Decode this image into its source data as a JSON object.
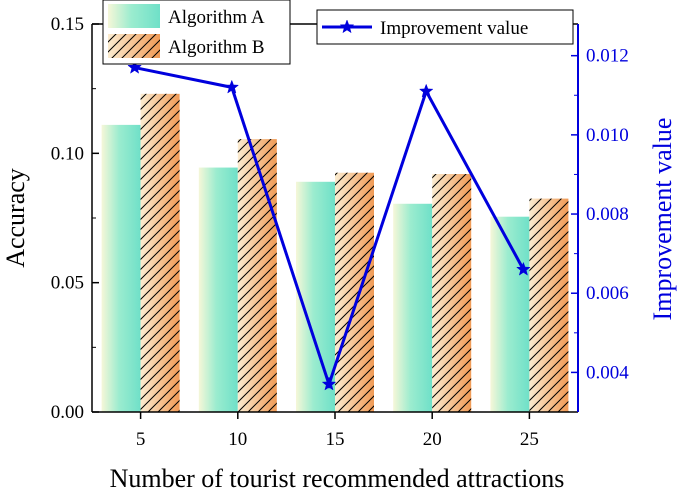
{
  "chart_data": {
    "type": "bar+line",
    "xlabel": "Number of tourist recommended attractions",
    "ylabel_left": "Accuracy",
    "ylabel_right": "Improvement value",
    "categories": [
      "5",
      "10",
      "15",
      "20",
      "25"
    ],
    "ylim_left": [
      0,
      0.15
    ],
    "yticks_left": [
      "0.00",
      "0.05",
      "0.10",
      "0.15"
    ],
    "ylim_right": [
      0.003,
      0.0128
    ],
    "yticks_right": [
      "0.004",
      "0.006",
      "0.008",
      "0.010",
      "0.012"
    ],
    "bar_series": [
      {
        "name": "Algorithm A",
        "values": [
          0.111,
          0.0945,
          0.089,
          0.0805,
          0.0755
        ],
        "color": "#7fe3cc"
      },
      {
        "name": "Algorithm B",
        "values": [
          0.123,
          0.1055,
          0.0925,
          0.092,
          0.0825
        ],
        "color": "#f3a768"
      }
    ],
    "line_series": {
      "name": "Improvement value",
      "values": [
        0.0117,
        0.0112,
        0.0037,
        0.0111,
        0.0066
      ],
      "color": "#0000dd"
    },
    "legend": [
      "top-left",
      "top-right"
    ],
    "grid": false
  }
}
